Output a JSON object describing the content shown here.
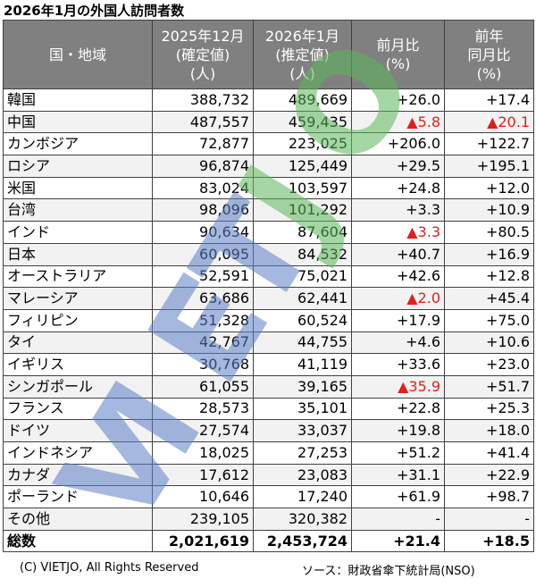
{
  "header": {
    "title": "2026年1月の外国人訪問者数"
  },
  "table": {
    "columns": [
      [
        "国・地域"
      ],
      [
        "2025年12月",
        "(確定値)",
        "(人)"
      ],
      [
        "2026年1月",
        "(推定値)",
        "(人)"
      ],
      [
        "前月比",
        "(%)"
      ],
      [
        "前年",
        "同月比",
        "(%)"
      ]
    ],
    "rows": [
      [
        "韓国",
        "388,732",
        "489,669",
        "+26.0",
        "+17.4"
      ],
      [
        "中国",
        "487,557",
        "459,435",
        {
          "text": "▲5.8",
          "color": "#e0201b"
        },
        {
          "text": "▲20.1",
          "color": "#e0201b"
        }
      ],
      [
        "カンボジア",
        "72,877",
        "223,025",
        "+206.0",
        "+122.7"
      ],
      [
        "ロシア",
        "96,874",
        "125,449",
        "+29.5",
        "+195.1"
      ],
      [
        "米国",
        "83,024",
        "103,597",
        "+24.8",
        "+12.0"
      ],
      [
        "台湾",
        "98,096",
        "101,292",
        "+3.3",
        "+10.9"
      ],
      [
        "インド",
        "90,634",
        "87,604",
        {
          "text": "▲3.3",
          "color": "#e0201b"
        },
        "+80.5"
      ],
      [
        "日本",
        "60,095",
        "84,532",
        "+40.7",
        "+16.9"
      ],
      [
        "オーストラリア",
        "52,591",
        "75,021",
        "+42.6",
        "+12.8"
      ],
      [
        "マレーシア",
        "63,686",
        "62,441",
        {
          "text": "▲2.0",
          "color": "#e0201b"
        },
        "+45.4"
      ],
      [
        "フィリピン",
        "51,328",
        "60,524",
        "+17.9",
        "+75.0"
      ],
      [
        "タイ",
        "42,767",
        "44,755",
        "+4.6",
        "+10.6"
      ],
      [
        "イギリス",
        "30,768",
        "41,119",
        "+33.6",
        "+23.0"
      ],
      [
        "シンガポール",
        "61,055",
        "39,165",
        {
          "text": "▲35.9",
          "color": "#e0201b"
        },
        "+51.7"
      ],
      [
        "フランス",
        "28,573",
        "35,101",
        "+22.8",
        "+25.3"
      ],
      [
        "ドイツ",
        "27,574",
        "33,037",
        "+19.8",
        "+18.0"
      ],
      [
        "インドネシア",
        "18,025",
        "27,253",
        "+51.2",
        "+41.4"
      ],
      [
        "カナダ",
        "17,612",
        "23,083",
        "+31.1",
        "+22.9"
      ],
      [
        "ポーランド",
        "10,646",
        "17,240",
        "+61.9",
        "+98.7"
      ],
      [
        "その他",
        "239,105",
        "320,382",
        "-",
        "-"
      ],
      [
        "総数",
        "2,021,619",
        "2,453,724",
        "+21.4",
        "+18.5"
      ]
    ]
  },
  "watermark": "VIETJO",
  "footer": {
    "copyright": "(C) VIETJO, All Rights Reserved",
    "source": "ソース：財政省傘下統計局(NSO)"
  }
}
